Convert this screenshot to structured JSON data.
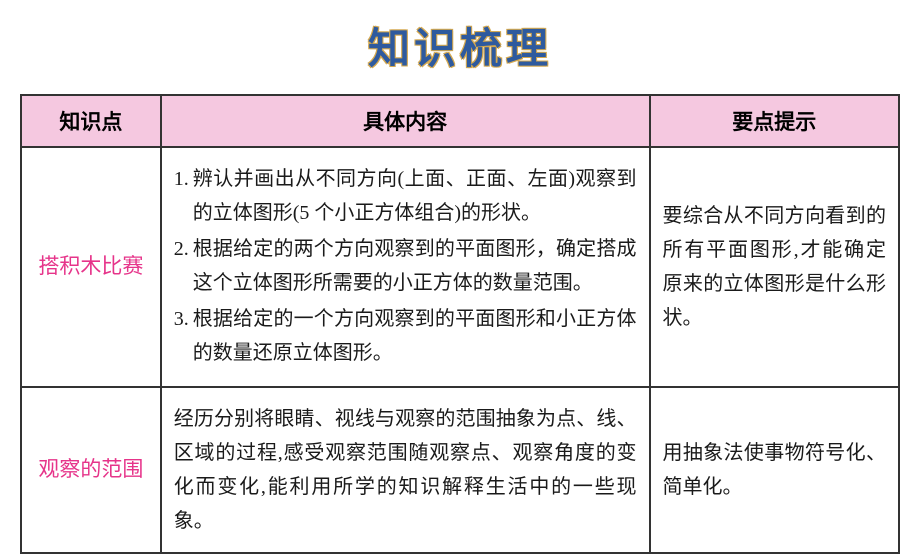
{
  "title": "知识梳理",
  "colors": {
    "title_color": "#2e5a9e",
    "title_outline": "#d4a84f",
    "header_bg": "#f5c8e0",
    "topic_color": "#e6348a",
    "border_color": "#333333",
    "text_color": "#1a1a1a"
  },
  "typography": {
    "title_fontsize": 42,
    "header_fontsize": 21,
    "cell_fontsize": 20,
    "topic_fontsize": 21,
    "line_height": 1.7
  },
  "layout": {
    "col1_width": 140,
    "col2_width": 490,
    "col3_width": 250
  },
  "table": {
    "headers": [
      "知识点",
      "具体内容",
      "要点提示"
    ],
    "rows": [
      {
        "topic": "搭积木比赛",
        "content_items": [
          {
            "num": "1.",
            "text": "辨认并画出从不同方向(上面、正面、左面)观察到的立体图形(5 个小正方体组合)的形状。"
          },
          {
            "num": "2.",
            "text": "根据给定的两个方向观察到的平面图形，确定搭成这个立体图形所需要的小正方体的数量范围。"
          },
          {
            "num": "3.",
            "text": "根据给定的一个方向观察到的平面图形和小正方体的数量还原立体图形。"
          }
        ],
        "tip": "要综合从不同方向看到的所有平面图形,才能确定原来的立体图形是什么形状。"
      },
      {
        "topic": "观察的范围",
        "content_text": "经历分别将眼睛、视线与观察的范围抽象为点、线、区域的过程,感受观察范围随观察点、观察角度的变化而变化,能利用所学的知识解释生活中的一些现象。",
        "tip": "用抽象法使事物符号化、简单化。"
      }
    ]
  }
}
